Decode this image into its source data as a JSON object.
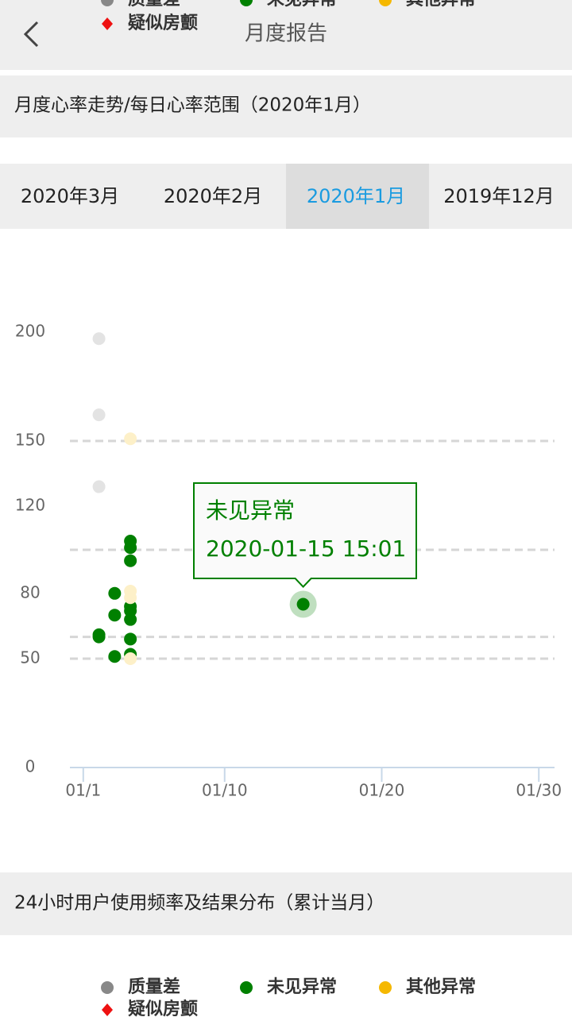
{
  "header": {
    "title": "月度报告"
  },
  "section1": {
    "title": "月度心率走势/每日心率范围（2020年1月）"
  },
  "tabs": {
    "items": [
      "2020年3月",
      "2020年2月",
      "2020年1月",
      "2019年12月"
    ],
    "active": 2,
    "active_color": "#1a9be0"
  },
  "chart_data": {
    "type": "scatter",
    "series": [
      {
        "name": "质量差",
        "color": "#888888",
        "point_color": "#e3e3e3",
        "marker": "circle",
        "x": [
          2,
          2,
          2
        ],
        "values": [
          197,
          162,
          129
        ]
      },
      {
        "name": "未见异常",
        "color": "#008000",
        "point_color": "#008000",
        "marker": "circle",
        "x": [
          2,
          2,
          3,
          3,
          3,
          4,
          4,
          4,
          4,
          4,
          4,
          4,
          4,
          15
        ],
        "values": [
          61,
          60,
          80,
          70,
          51,
          104,
          101,
          95,
          74,
          72,
          68,
          59,
          52,
          75
        ]
      },
      {
        "name": "其他异常",
        "color": "#f5b800",
        "point_color": "#fdf0c8",
        "marker": "circle",
        "x": [
          4,
          4,
          4,
          4
        ],
        "values": [
          151,
          81,
          78,
          50
        ]
      },
      {
        "name": "疑似房颤",
        "color": "#ee1111",
        "point_color": "#ee1111",
        "marker": "diamond",
        "x": [],
        "values": []
      }
    ],
    "xlim": [
      0.15,
      31
    ],
    "xticks": [
      {
        "value": 1,
        "label": "01/1"
      },
      {
        "value": 10,
        "label": "01/10"
      },
      {
        "value": 20,
        "label": "01/20"
      },
      {
        "value": 30,
        "label": "01/30"
      }
    ],
    "ylim": [
      0,
      200
    ],
    "yticks": [
      0,
      50,
      80,
      120,
      150,
      200
    ],
    "grid_lines": [
      50,
      60,
      100,
      150
    ],
    "tooltip": {
      "series": 1,
      "index": 13,
      "title": "未见异常",
      "text": "2020-01-15 15:01"
    }
  },
  "section2": {
    "title": "24小时用户使用频率及结果分布（累计当月）",
    "legend": [
      "质量差",
      "未见异常",
      "其他异常",
      "疑似房颤"
    ]
  }
}
